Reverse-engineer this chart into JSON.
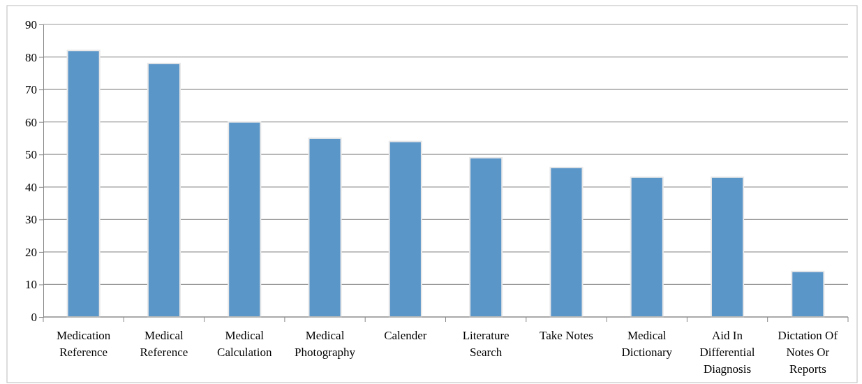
{
  "chart_data": {
    "type": "bar",
    "categories": [
      "Medication Reference",
      "Medical Reference",
      "Medical Calculation",
      "Medical Photography",
      "Calender",
      "Literature Search",
      "Take Notes",
      "Medical Dictionary",
      "Aid In Differential Diagnosis",
      "Dictation Of Notes Or Reports"
    ],
    "values": [
      82,
      78,
      60,
      55,
      54,
      49,
      46,
      43,
      43,
      14
    ],
    "color": "#5b96c9",
    "ylim": [
      0,
      90
    ],
    "yticks": [
      0,
      10,
      20,
      30,
      40,
      50,
      60,
      70,
      80,
      90
    ],
    "grid": "y"
  }
}
